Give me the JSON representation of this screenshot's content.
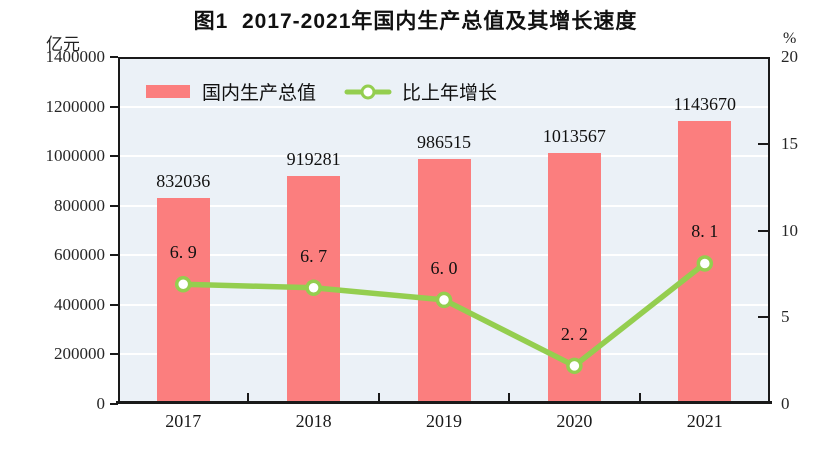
{
  "chart_data": {
    "type": "bar+line",
    "title": "图1  2017-2021年国内生产总值及其增长速度",
    "categories": [
      "2017",
      "2018",
      "2019",
      "2020",
      "2021"
    ],
    "series": [
      {
        "name": "国内生产总值",
        "type": "bar",
        "axis": "left",
        "unit": "亿元",
        "color": "#FB7E7E",
        "values": [
          832036,
          919281,
          986515,
          1013567,
          1143670
        ],
        "labels": [
          "832036",
          "919281",
          "986515",
          "1013567",
          "1143670"
        ]
      },
      {
        "name": "比上年增长",
        "type": "line",
        "axis": "right",
        "unit": "%",
        "color": "#94CE4F",
        "marker": "circle-white-fill",
        "values": [
          6.9,
          6.7,
          6.0,
          2.2,
          8.1
        ],
        "labels": [
          "6. 9",
          "6. 7",
          "6. 0",
          "2. 2",
          "8. 1"
        ]
      }
    ],
    "left_axis": {
      "unit": "亿元",
      "min": 0,
      "max": 1400000,
      "step": 200000,
      "ticks": [
        "1400000",
        "1200000",
        "1000000",
        "800000",
        "600000",
        "400000",
        "200000",
        "0"
      ]
    },
    "right_axis": {
      "unit": "%",
      "min": 0,
      "max": 20,
      "step": 5,
      "ticks": [
        "20",
        "15",
        "10",
        "5",
        "0"
      ],
      "inner_tick_values": [
        15,
        10,
        5
      ]
    },
    "grid": true,
    "legend": {
      "position": "inside-top-left",
      "entries": [
        "国内生产总值",
        "比上年增长"
      ]
    },
    "colors": {
      "plot_background": "#EBF1F7",
      "gridline": "#FFFFFF",
      "axis": "#1A1A1A",
      "text": "#111111"
    }
  }
}
